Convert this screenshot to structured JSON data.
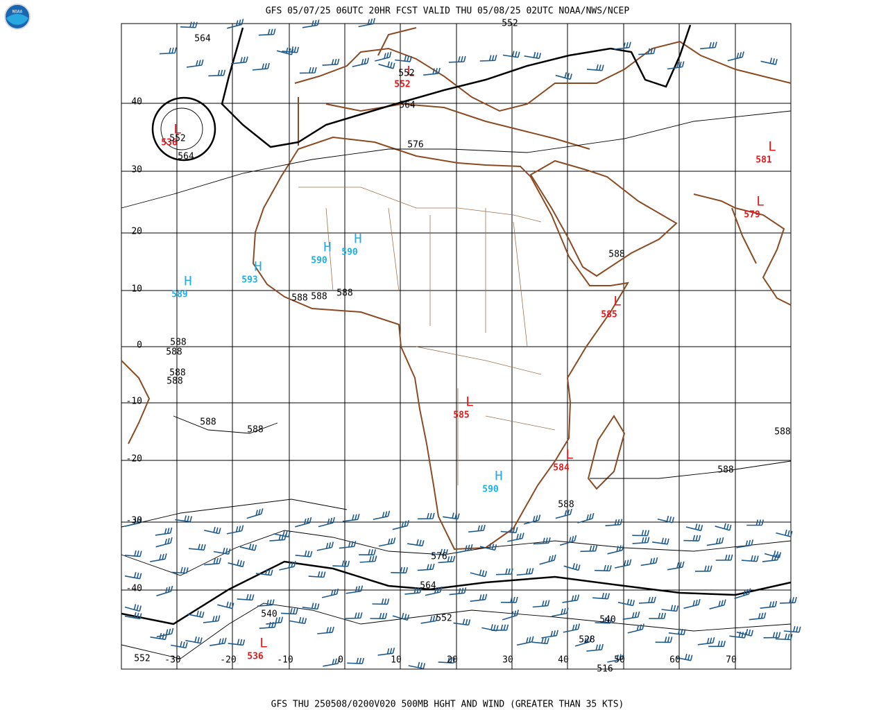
{
  "header": {
    "title": "GFS 05/07/25 06UTC 20HR FCST VALID THU 05/08/25 02UTC NOAA/NWS/NCEP"
  },
  "footer": {
    "caption": "GFS THU 250508/0200V020 500MB HGHT AND WIND (GREATER THAN 35 KTS)"
  },
  "logo": {
    "label": "NOAA"
  },
  "latitude_labels": [
    "40",
    "30",
    "20",
    "10",
    "0",
    "-10",
    "-20",
    "-30",
    "-40"
  ],
  "longitude_labels": [
    "-30",
    "-20",
    "-10",
    "0",
    "10",
    "20",
    "30",
    "40",
    "50",
    "60",
    "70"
  ],
  "highs": [
    {
      "symbol": "H",
      "value": "589"
    },
    {
      "symbol": "H",
      "value": "593"
    },
    {
      "symbol": "H",
      "value": "590"
    },
    {
      "symbol": "H",
      "value": "590"
    },
    {
      "symbol": "H",
      "value": "590"
    }
  ],
  "lows": [
    {
      "symbol": "L",
      "value": "536"
    },
    {
      "symbol": "L",
      "value": "552"
    },
    {
      "symbol": "L",
      "value": "581"
    },
    {
      "symbol": "L",
      "value": "579"
    },
    {
      "symbol": "L",
      "value": "585"
    },
    {
      "symbol": "L",
      "value": "585"
    },
    {
      "symbol": "L",
      "value": "584"
    },
    {
      "symbol": "L",
      "value": "536"
    }
  ],
  "contour_labels": [
    "564",
    "552",
    "552",
    "564",
    "552",
    "564",
    "576",
    "588",
    "588",
    "588",
    "588",
    "588",
    "588",
    "588",
    "588",
    "588",
    "588",
    "588",
    "588",
    "588",
    "576",
    "564",
    "552",
    "540",
    "540",
    "528",
    "516",
    "552"
  ]
}
